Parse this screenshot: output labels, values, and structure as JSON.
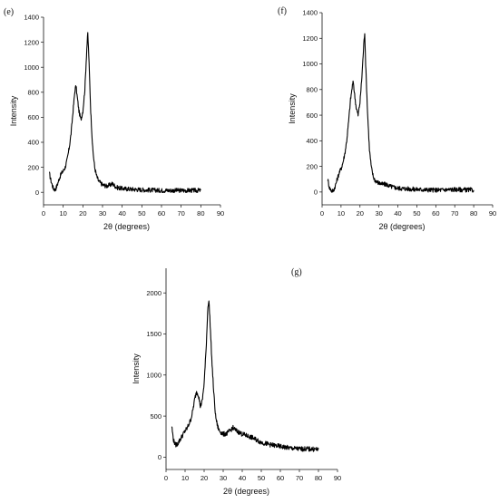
{
  "chart_data": [
    {
      "type": "line",
      "panel_label": "(e)",
      "xlabel": "2θ (degrees)",
      "ylabel": "Intensity",
      "xlim": [
        0,
        90
      ],
      "ylim": [
        -100,
        1400
      ],
      "xticks": [
        0,
        10,
        20,
        30,
        40,
        50,
        60,
        70,
        80,
        90
      ],
      "yticks": [
        0,
        200,
        400,
        600,
        800,
        1000,
        1200,
        1400
      ],
      "grid": false,
      "series": [
        {
          "x": [
            3,
            3.5,
            4,
            5,
            6,
            7,
            8,
            9,
            10,
            11,
            12,
            13,
            14,
            15,
            16,
            16.5,
            17,
            18,
            19,
            20,
            21,
            22,
            22.5,
            23,
            24,
            25,
            26,
            27,
            28,
            30,
            32,
            34,
            35,
            37,
            40,
            45,
            50,
            60,
            70,
            80
          ],
          "y": [
            150,
            110,
            80,
            30,
            20,
            60,
            110,
            150,
            170,
            200,
            260,
            350,
            470,
            650,
            820,
            850,
            780,
            650,
            580,
            650,
            820,
            1150,
            1270,
            1100,
            650,
            350,
            200,
            130,
            90,
            60,
            50,
            60,
            70,
            40,
            30,
            25,
            20,
            15,
            15,
            15
          ]
        }
      ]
    },
    {
      "type": "line",
      "panel_label": "(f)",
      "xlabel": "2θ (degrees)",
      "ylabel": "Intensity",
      "xlim": [
        0,
        90
      ],
      "ylim": [
        -100,
        1400
      ],
      "xticks": [
        0,
        10,
        20,
        30,
        40,
        50,
        60,
        70,
        80,
        90
      ],
      "yticks": [
        0,
        200,
        400,
        600,
        800,
        1000,
        1200,
        1400
      ],
      "grid": false,
      "series": [
        {
          "x": [
            3,
            3.5,
            4,
            5,
            6,
            7,
            8,
            9,
            10,
            11,
            12,
            13,
            14,
            15,
            16,
            16.5,
            17,
            18,
            19,
            20,
            21,
            22,
            22.5,
            23,
            24,
            25,
            26,
            27,
            28,
            30,
            32,
            34,
            35,
            37,
            40,
            45,
            50,
            60,
            70,
            80
          ],
          "y": [
            100,
            60,
            30,
            10,
            10,
            50,
            100,
            150,
            180,
            230,
            300,
            400,
            550,
            720,
            830,
            860,
            780,
            660,
            600,
            700,
            900,
            1150,
            1250,
            1000,
            620,
            330,
            190,
            120,
            90,
            70,
            60,
            60,
            50,
            40,
            30,
            25,
            20,
            15,
            20,
            15
          ]
        }
      ]
    },
    {
      "type": "line",
      "panel_label": "(g)",
      "xlabel": "2θ (degrees)",
      "ylabel": "Intensity",
      "xlim": [
        0,
        90
      ],
      "ylim": [
        -150,
        2300
      ],
      "xticks": [
        0,
        10,
        20,
        30,
        40,
        50,
        60,
        70,
        80,
        90
      ],
      "yticks": [
        0,
        500,
        1000,
        1500,
        2000
      ],
      "grid": false,
      "series": [
        {
          "x": [
            3,
            3.5,
            4,
            5,
            6,
            7,
            8,
            9,
            10,
            11,
            12,
            13,
            14,
            15,
            16,
            17,
            18,
            19,
            20,
            21,
            22,
            22.5,
            23,
            24,
            25,
            26,
            27,
            28,
            30,
            32,
            34,
            35,
            37,
            40,
            45,
            50,
            55,
            60,
            65,
            70,
            75,
            80
          ],
          "y": [
            380,
            280,
            200,
            150,
            160,
            200,
            240,
            280,
            320,
            350,
            400,
            460,
            560,
            700,
            800,
            760,
            620,
            680,
            900,
            1300,
            1850,
            1900,
            1700,
            1200,
            800,
            500,
            380,
            320,
            280,
            290,
            330,
            360,
            320,
            280,
            240,
            180,
            150,
            130,
            110,
            100,
            100,
            95
          ]
        }
      ]
    }
  ]
}
